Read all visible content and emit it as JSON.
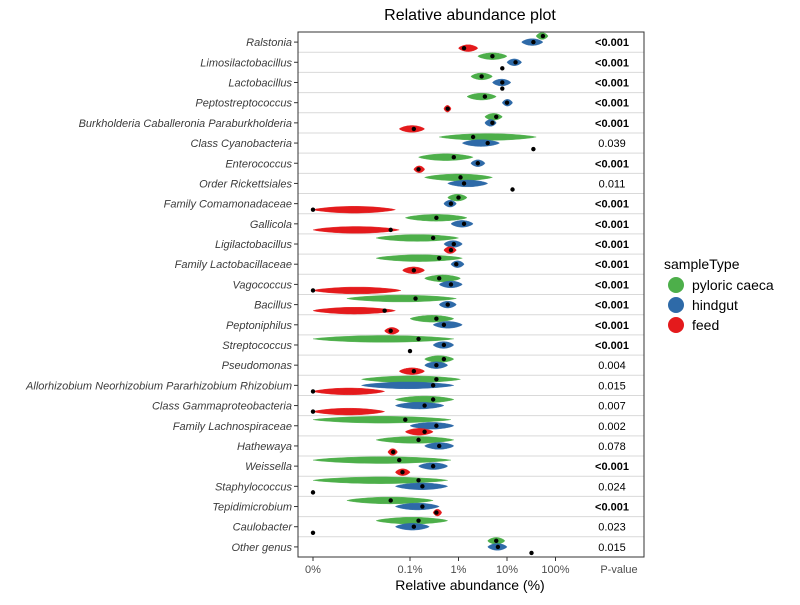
{
  "chart_data": {
    "type": "violin",
    "title": "Relative abundance plot",
    "xlabel": "Relative abundance (%)",
    "x_scale": "log",
    "x_ticks": [
      "0%",
      "0.1%",
      "1%",
      "10%",
      "100%"
    ],
    "pvalue_header": "P-value",
    "legend": {
      "title": "sampleType",
      "placement": "right",
      "entries": [
        {
          "label": "pyloric caeca",
          "color": "#4daf4a"
        },
        {
          "label": "hindgut",
          "color": "#2e6aa8"
        },
        {
          "label": "feed",
          "color": "#e41a1c"
        }
      ]
    },
    "series_colors": {
      "pyloric_caeca": "#4daf4a",
      "hindgut": "#2e6aa8",
      "feed": "#e41a1c"
    },
    "zero_value": 0.001,
    "rows": [
      {
        "genus": "Ralstonia",
        "p_value": "<0.001",
        "significant": true,
        "pyloric_caeca": {
          "median": 55,
          "min": 40,
          "max": 70
        },
        "hindgut": {
          "median": 35,
          "min": 20,
          "max": 55
        },
        "feed": {
          "median": 1.3,
          "min": 1.0,
          "max": 2.5
        }
      },
      {
        "genus": "Limosilactobacillus",
        "p_value": "<0.001",
        "significant": true,
        "pyloric_caeca": {
          "median": 5,
          "min": 2.5,
          "max": 10
        },
        "hindgut": {
          "median": 15,
          "min": 10,
          "max": 20
        },
        "feed": {
          "median": 8,
          "min": 8,
          "max": 8
        }
      },
      {
        "genus": "Lactobacillus",
        "p_value": "<0.001",
        "significant": true,
        "pyloric_caeca": {
          "median": 3,
          "min": 1.8,
          "max": 5
        },
        "hindgut": {
          "median": 8,
          "min": 5,
          "max": 12
        },
        "feed": {
          "median": 8,
          "min": 8,
          "max": 8
        }
      },
      {
        "genus": "Peptostreptococcus",
        "p_value": "<0.001",
        "significant": true,
        "pyloric_caeca": {
          "median": 3.5,
          "min": 1.5,
          "max": 6
        },
        "hindgut": {
          "median": 10,
          "min": 8,
          "max": 13
        },
        "feed": {
          "median": 0.6,
          "min": 0.5,
          "max": 0.7
        }
      },
      {
        "genus": "Burkholderia Caballeronia Paraburkholderia",
        "p_value": "<0.001",
        "significant": true,
        "pyloric_caeca": {
          "median": 6,
          "min": 3.5,
          "max": 8
        },
        "hindgut": {
          "median": 5,
          "min": 3.5,
          "max": 6
        },
        "feed": {
          "median": 0.12,
          "min": 0.06,
          "max": 0.2
        }
      },
      {
        "genus": "Class Cyanobacteria",
        "p_value": "0.039",
        "significant": false,
        "pyloric_caeca": {
          "median": 2,
          "min": 0.4,
          "max": 40
        },
        "hindgut": {
          "median": 4,
          "min": 1.2,
          "max": 7
        },
        "feed": {
          "median": 35,
          "min": 35,
          "max": 35
        }
      },
      {
        "genus": "Enterococcus",
        "p_value": "<0.001",
        "significant": true,
        "pyloric_caeca": {
          "median": 0.8,
          "min": 0.15,
          "max": 2
        },
        "hindgut": {
          "median": 2.5,
          "min": 1.8,
          "max": 3.5
        },
        "feed": {
          "median": 0.15,
          "min": 0.12,
          "max": 0.2
        }
      },
      {
        "genus": "Order Rickettsiales",
        "p_value": "0.011",
        "significant": false,
        "pyloric_caeca": {
          "median": 1.1,
          "min": 0.2,
          "max": 5
        },
        "hindgut": {
          "median": 1.3,
          "min": 0.6,
          "max": 4
        },
        "feed": {
          "median": 13,
          "min": 13,
          "max": 13
        }
      },
      {
        "genus": "Family Comamonadaceae",
        "p_value": "<0.001",
        "significant": true,
        "pyloric_caeca": {
          "median": 1,
          "min": 0.6,
          "max": 1.5
        },
        "hindgut": {
          "median": 0.7,
          "min": 0.5,
          "max": 0.9
        },
        "feed": {
          "median": 0.001,
          "min": 0.001,
          "max": 0.05
        }
      },
      {
        "genus": "Gallicola",
        "p_value": "<0.001",
        "significant": true,
        "pyloric_caeca": {
          "median": 0.35,
          "min": 0.08,
          "max": 1.5
        },
        "hindgut": {
          "median": 1.3,
          "min": 0.7,
          "max": 2
        },
        "feed": {
          "median": 0.04,
          "min": 0.001,
          "max": 0.06
        }
      },
      {
        "genus": "Ligilactobacillus",
        "p_value": "<0.001",
        "significant": true,
        "pyloric_caeca": {
          "median": 0.3,
          "min": 0.02,
          "max": 1
        },
        "hindgut": {
          "median": 0.8,
          "min": 0.5,
          "max": 1.2
        },
        "feed": {
          "median": 0.7,
          "min": 0.5,
          "max": 0.9
        }
      },
      {
        "genus": "Family Lactobacillaceae",
        "p_value": "<0.001",
        "significant": true,
        "pyloric_caeca": {
          "median": 0.4,
          "min": 0.02,
          "max": 1.2
        },
        "hindgut": {
          "median": 0.9,
          "min": 0.7,
          "max": 1.3
        },
        "feed": {
          "median": 0.12,
          "min": 0.07,
          "max": 0.2
        }
      },
      {
        "genus": "Vagococcus",
        "p_value": "<0.001",
        "significant": true,
        "pyloric_caeca": {
          "median": 0.4,
          "min": 0.2,
          "max": 1.1
        },
        "hindgut": {
          "median": 0.7,
          "min": 0.4,
          "max": 1.2
        },
        "feed": {
          "median": 0.001,
          "min": 0.001,
          "max": 0.065
        }
      },
      {
        "genus": "Bacillus",
        "p_value": "<0.001",
        "significant": true,
        "pyloric_caeca": {
          "median": 0.13,
          "min": 0.005,
          "max": 0.9
        },
        "hindgut": {
          "median": 0.6,
          "min": 0.4,
          "max": 0.9
        },
        "feed": {
          "median": 0.03,
          "min": 0.001,
          "max": 0.05
        }
      },
      {
        "genus": "Peptoniphilus",
        "p_value": "<0.001",
        "significant": true,
        "pyloric_caeca": {
          "median": 0.35,
          "min": 0.1,
          "max": 0.8
        },
        "hindgut": {
          "median": 0.5,
          "min": 0.3,
          "max": 1.2
        },
        "feed": {
          "median": 0.04,
          "min": 0.03,
          "max": 0.06
        }
      },
      {
        "genus": "Streptococcus",
        "p_value": "<0.001",
        "significant": true,
        "pyloric_caeca": {
          "median": 0.15,
          "min": 0.001,
          "max": 0.8
        },
        "hindgut": {
          "median": 0.5,
          "min": 0.3,
          "max": 0.8
        },
        "feed": {
          "median": 0.1,
          "min": 0.1,
          "max": 0.1
        }
      },
      {
        "genus": "Pseudomonas",
        "p_value": "0.004",
        "significant": false,
        "pyloric_caeca": {
          "median": 0.5,
          "min": 0.2,
          "max": 0.8
        },
        "hindgut": {
          "median": 0.35,
          "min": 0.2,
          "max": 0.6
        },
        "feed": {
          "median": 0.12,
          "min": 0.06,
          "max": 0.2
        }
      },
      {
        "genus": "Allorhizobium Neorhizobium Pararhizobium Rhizobium",
        "p_value": "0.015",
        "significant": false,
        "pyloric_caeca": {
          "median": 0.35,
          "min": 0.01,
          "max": 1.1
        },
        "hindgut": {
          "median": 0.3,
          "min": 0.01,
          "max": 0.8
        },
        "feed": {
          "median": 0.001,
          "min": 0.001,
          "max": 0.03
        }
      },
      {
        "genus": "Class Gammaproteobacteria",
        "p_value": "0.007",
        "significant": false,
        "pyloric_caeca": {
          "median": 0.3,
          "min": 0.05,
          "max": 0.8
        },
        "hindgut": {
          "median": 0.2,
          "min": 0.05,
          "max": 0.5
        },
        "feed": {
          "median": 0.001,
          "min": 0.001,
          "max": 0.03
        }
      },
      {
        "genus": "Family Lachnospiraceae",
        "p_value": "0.002",
        "significant": false,
        "pyloric_caeca": {
          "median": 0.08,
          "min": 0.001,
          "max": 0.7
        },
        "hindgut": {
          "median": 0.35,
          "min": 0.1,
          "max": 0.8
        },
        "feed": {
          "median": 0.2,
          "min": 0.08,
          "max": 0.3
        }
      },
      {
        "genus": "Hathewaya",
        "p_value": "0.078",
        "significant": false,
        "pyloric_caeca": {
          "median": 0.15,
          "min": 0.02,
          "max": 0.8
        },
        "hindgut": {
          "median": 0.4,
          "min": 0.2,
          "max": 0.8
        },
        "feed": {
          "median": 0.045,
          "min": 0.035,
          "max": 0.055
        }
      },
      {
        "genus": "Weissella",
        "p_value": "<0.001",
        "significant": true,
        "pyloric_caeca": {
          "median": 0.06,
          "min": 0.001,
          "max": 0.7
        },
        "hindgut": {
          "median": 0.3,
          "min": 0.15,
          "max": 0.6
        },
        "feed": {
          "median": 0.07,
          "min": 0.05,
          "max": 0.1
        }
      },
      {
        "genus": "Staphylococcus",
        "p_value": "0.024",
        "significant": false,
        "pyloric_caeca": {
          "median": 0.15,
          "min": 0.001,
          "max": 0.6
        },
        "hindgut": {
          "median": 0.18,
          "min": 0.05,
          "max": 0.6
        },
        "feed": {
          "median": 0.001,
          "min": 0.001,
          "max": 0.001
        }
      },
      {
        "genus": "Tepidimicrobium",
        "p_value": "<0.001",
        "significant": true,
        "pyloric_caeca": {
          "median": 0.04,
          "min": 0.005,
          "max": 0.3
        },
        "hindgut": {
          "median": 0.18,
          "min": 0.05,
          "max": 0.4
        },
        "feed": {
          "median": 0.35,
          "min": 0.3,
          "max": 0.45
        }
      },
      {
        "genus": "Caulobacter",
        "p_value": "0.023",
        "significant": false,
        "pyloric_caeca": {
          "median": 0.15,
          "min": 0.02,
          "max": 0.6
        },
        "hindgut": {
          "median": 0.12,
          "min": 0.05,
          "max": 0.25
        },
        "feed": {
          "median": 0.001,
          "min": 0.001,
          "max": 0.001
        }
      },
      {
        "genus": "Other genus",
        "p_value": "0.015",
        "significant": false,
        "pyloric_caeca": {
          "median": 6,
          "min": 4,
          "max": 9
        },
        "hindgut": {
          "median": 6.5,
          "min": 4,
          "max": 10
        },
        "feed": {
          "median": 32,
          "min": 30,
          "max": 34
        }
      }
    ]
  }
}
